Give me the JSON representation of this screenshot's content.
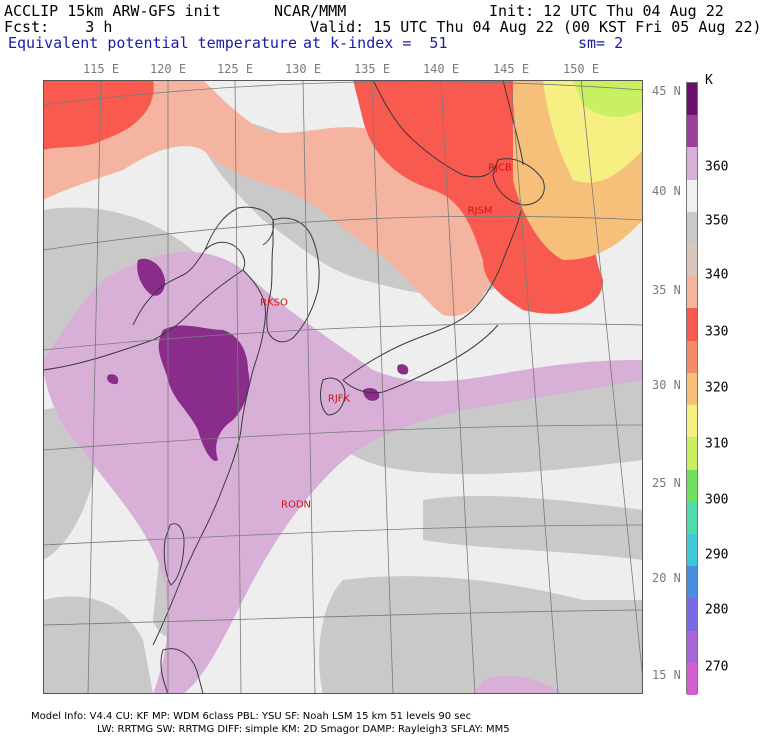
{
  "header": {
    "line1_left": "ACCLIP 15km ARW-GFS init",
    "line1_center": "NCAR/MMM",
    "line1_right": "Init: 12 UTC Thu 04 Aug 22",
    "line2_left": "Fcst:    3 h",
    "line2_right": "Valid: 15 UTC Thu 04 Aug 22 (00 KST Fri 05 Aug 22)",
    "line3_field": "Equivalent potential temperature",
    "line3_level": "at k-index =  51",
    "line3_smooth": "sm= 2"
  },
  "map": {
    "longitude_labels": [
      "115 E",
      "120 E",
      "125 E",
      "130 E",
      "135 E",
      "140 E",
      "145 E",
      "150 E"
    ],
    "latitude_labels": [
      "45 N",
      "40 N",
      "35 N",
      "30 N",
      "25 N",
      "20 N",
      "15 N"
    ],
    "stations": [
      {
        "id": "RJCB",
        "label": "RJCB"
      },
      {
        "id": "RJSM",
        "label": "RJSM"
      },
      {
        "id": "RKSO",
        "label": "RKSO"
      },
      {
        "id": "RJFK",
        "label": "RJFK"
      },
      {
        "id": "RODN",
        "label": "RODN"
      }
    ]
  },
  "colorbar": {
    "unit": "K",
    "labels": [
      "360",
      "350",
      "340",
      "330",
      "320",
      "310",
      "300",
      "290",
      "280",
      "270"
    ],
    "colors_top_to_bottom": [
      "#6a106f",
      "#9a3f9a",
      "#d7afd7",
      "#f0f0f0",
      "#c9c9c9",
      "#d9c6bd",
      "#f4b4a0",
      "#f85a50",
      "#f48c6a",
      "#f6c07a",
      "#f6ef82",
      "#c8f060",
      "#6fe062",
      "#4fdcaa",
      "#3fc8d8",
      "#4a8ee0",
      "#7a6ae2",
      "#a866d8",
      "#d25ed2"
    ]
  },
  "footer": {
    "line1": "Model Info: V4.4      CU: KF      MP: WDM 6class  PBL: YSU       SF: Noah LSM     15 km    51 levels    90 sec",
    "line2": "LW: RRTMG    SW: RRTMG   DIFF: simple KM: 2D Smagor DAMP: Rayleigh3   SFLAY: MM5"
  }
}
